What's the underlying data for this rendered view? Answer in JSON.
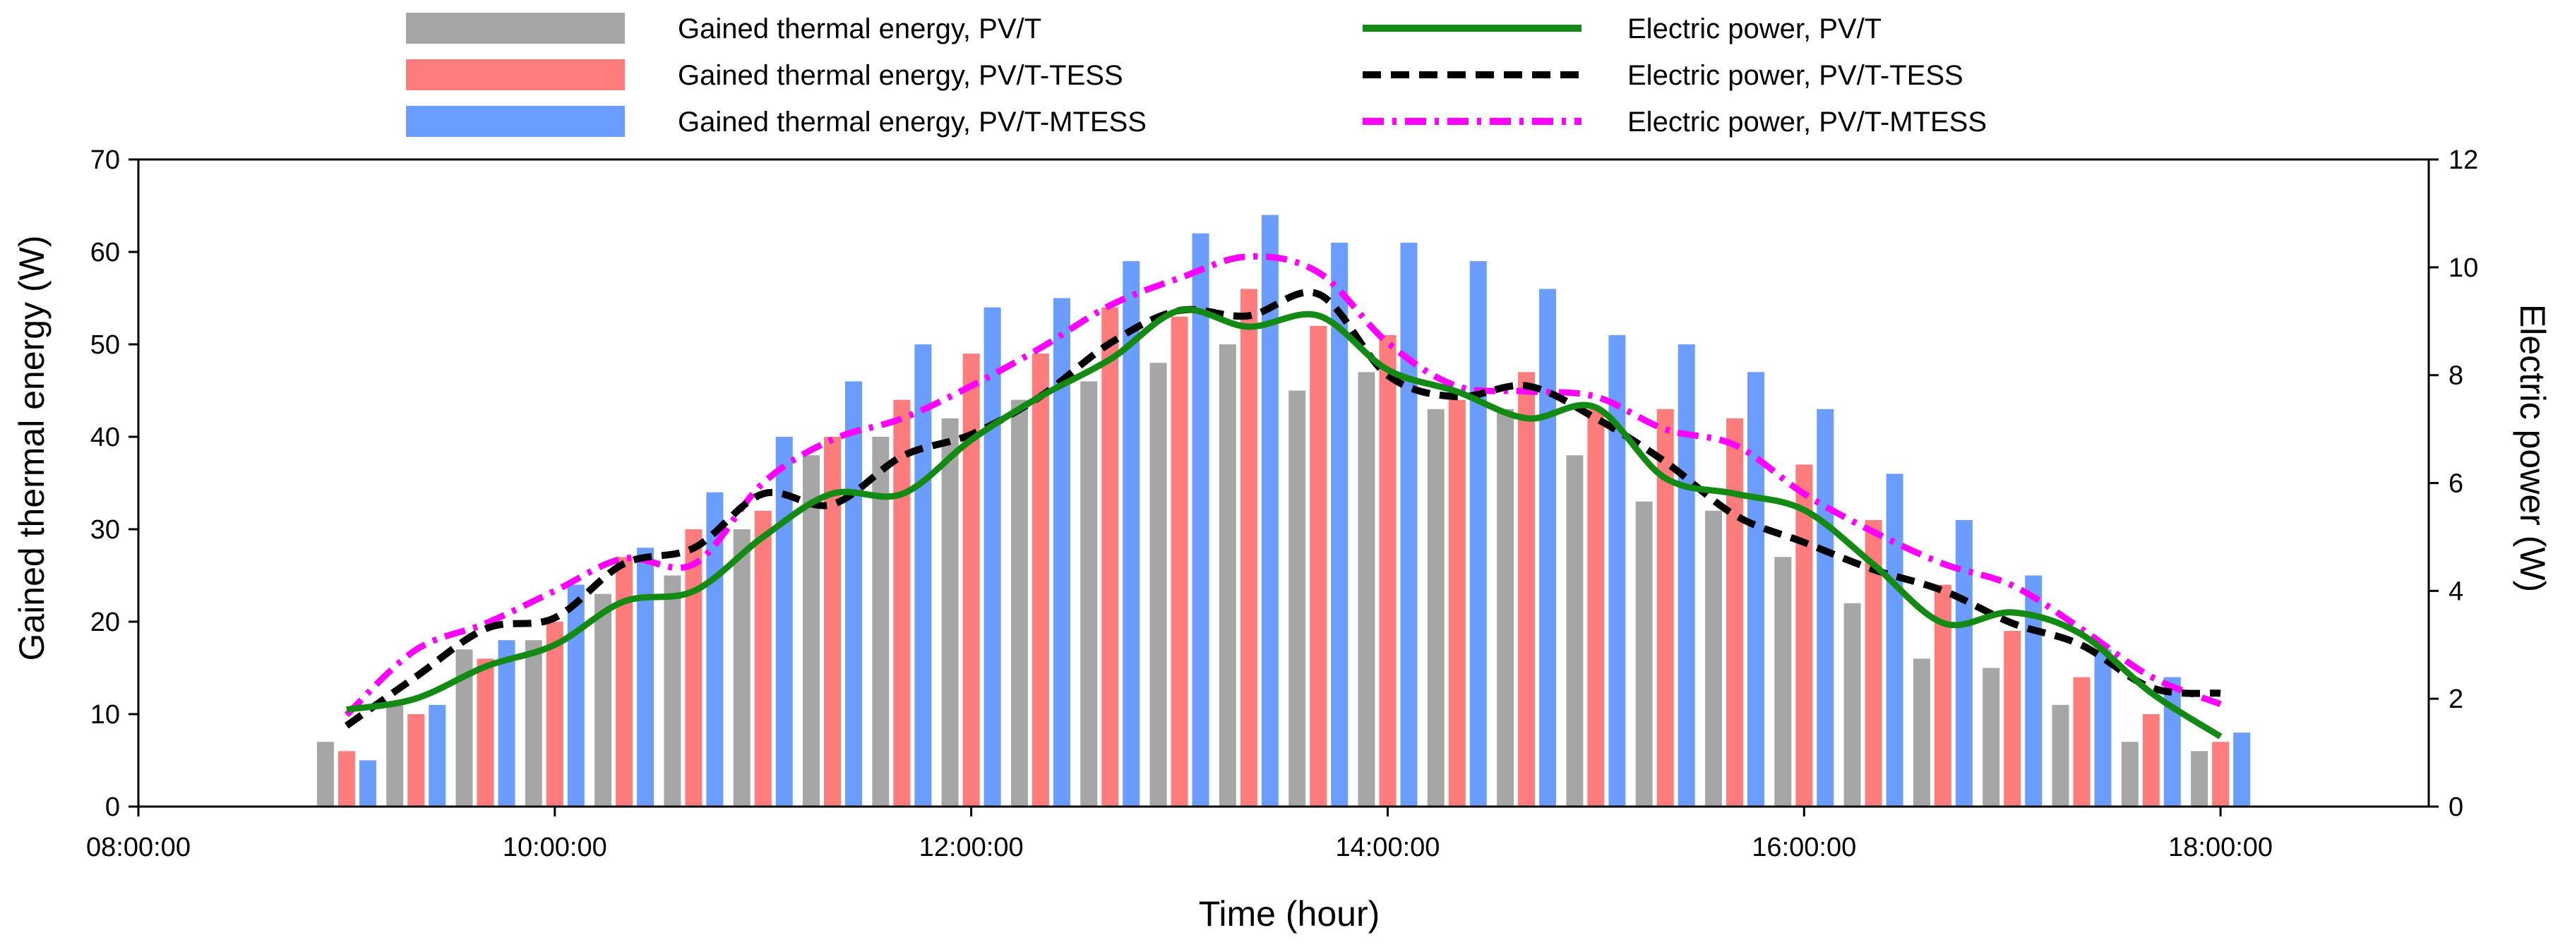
{
  "chart_data": {
    "type": "bar",
    "title": "",
    "xlabel": "Time (hour)",
    "ylabel": "Gained thermal energy (W)",
    "y2label": "Electric power (W)",
    "xlim_hours": [
      8,
      19
    ],
    "ylim": [
      0,
      70
    ],
    "y2lim": [
      0,
      12
    ],
    "x_ticks": [
      "08:00:00",
      "10:00:00",
      "12:00:00",
      "14:00:00",
      "16:00:00",
      "18:00:00"
    ],
    "y_ticks": [
      0,
      10,
      20,
      30,
      40,
      50,
      60,
      70
    ],
    "y2_ticks": [
      0,
      2,
      4,
      6,
      8,
      10,
      12
    ],
    "categories": [
      "09:00",
      "09:20",
      "09:40",
      "10:00",
      "10:20",
      "10:40",
      "11:00",
      "11:20",
      "11:40",
      "12:00",
      "12:20",
      "12:40",
      "13:00",
      "13:20",
      "13:40",
      "14:00",
      "14:20",
      "14:40",
      "15:00",
      "15:20",
      "15:40",
      "16:00",
      "16:20",
      "16:40",
      "17:00",
      "17:20",
      "17:40",
      "18:00"
    ],
    "bar_series": [
      {
        "name": "Gained thermal energy, PV/T",
        "color": "#a6a6a6",
        "values": [
          7,
          11,
          17,
          18,
          23,
          25,
          30,
          38,
          40,
          42,
          44,
          46,
          48,
          50,
          45,
          47,
          43,
          43,
          38,
          33,
          32,
          27,
          22,
          16,
          15,
          11,
          7,
          6
        ]
      },
      {
        "name": "Gained thermal energy, PV/T-TESS",
        "color": "#ff7c7c",
        "values": [
          6,
          10,
          16,
          20,
          27,
          30,
          32,
          40,
          44,
          49,
          49,
          54,
          53,
          56,
          52,
          51,
          44,
          47,
          43,
          43,
          42,
          37,
          31,
          24,
          19,
          14,
          10,
          7
        ]
      },
      {
        "name": "Gained thermal energy, PV/T-MTESS",
        "color": "#6b9cff",
        "values": [
          5,
          11,
          18,
          24,
          28,
          34,
          40,
          46,
          50,
          54,
          55,
          59,
          62,
          64,
          61,
          61,
          59,
          56,
          51,
          50,
          47,
          43,
          36,
          31,
          25,
          17,
          14,
          8
        ]
      }
    ],
    "line_series": [
      {
        "name": "Electric power, PV/T",
        "color": "#138a13",
        "dash": "solid",
        "x": [
          9.0,
          9.33,
          9.67,
          10.0,
          10.33,
          10.67,
          11.0,
          11.33,
          11.67,
          12.0,
          12.33,
          12.67,
          13.0,
          13.33,
          13.67,
          14.0,
          14.33,
          14.67,
          15.0,
          15.33,
          15.67,
          16.0,
          16.33,
          16.67,
          17.0,
          17.33,
          17.67,
          18.0
        ],
        "values": [
          1.8,
          2.0,
          2.6,
          3.0,
          3.8,
          4.0,
          5.0,
          5.8,
          5.8,
          6.8,
          7.6,
          8.3,
          9.2,
          8.9,
          9.1,
          8.1,
          7.7,
          7.2,
          7.4,
          6.1,
          5.8,
          5.5,
          4.5,
          3.4,
          3.6,
          3.2,
          2.1,
          1.3
        ]
      },
      {
        "name": "Electric power, PV/T-TESS",
        "color": "#000000",
        "dash": "dash",
        "x": [
          9.0,
          9.33,
          9.67,
          10.0,
          10.33,
          10.67,
          11.0,
          11.33,
          11.67,
          12.0,
          12.33,
          12.67,
          13.0,
          13.33,
          13.67,
          14.0,
          14.33,
          14.67,
          15.0,
          15.33,
          15.67,
          16.0,
          16.33,
          16.67,
          17.0,
          17.33,
          17.67,
          18.0
        ],
        "values": [
          1.5,
          2.4,
          3.3,
          3.5,
          4.5,
          4.8,
          5.8,
          5.6,
          6.5,
          6.9,
          7.6,
          8.6,
          9.2,
          9.1,
          9.5,
          8.0,
          7.6,
          7.8,
          7.2,
          6.4,
          5.4,
          4.9,
          4.4,
          4.0,
          3.4,
          3.0,
          2.2,
          2.1
        ]
      },
      {
        "name": "Electric power, PV/T-MTESS",
        "color": "#ff00ff",
        "dash": "dashdot",
        "x": [
          9.0,
          9.33,
          9.67,
          10.0,
          10.33,
          10.67,
          11.0,
          11.33,
          11.67,
          12.0,
          12.33,
          12.67,
          13.0,
          13.33,
          13.67,
          14.0,
          14.33,
          14.67,
          15.0,
          15.33,
          15.67,
          16.0,
          16.33,
          16.67,
          17.0,
          17.33,
          17.67,
          18.0
        ],
        "values": [
          1.7,
          2.9,
          3.4,
          4.0,
          4.6,
          4.5,
          6.0,
          6.8,
          7.2,
          7.8,
          8.5,
          9.3,
          9.8,
          10.2,
          9.9,
          8.6,
          7.8,
          7.7,
          7.6,
          7.0,
          6.7,
          5.8,
          5.1,
          4.5,
          4.1,
          3.3,
          2.4,
          1.9
        ]
      }
    ],
    "legend": [
      {
        "label": "Gained thermal energy, PV/T",
        "kind": "bar",
        "color": "#a6a6a6"
      },
      {
        "label": "Gained thermal energy, PV/T-TESS",
        "kind": "bar",
        "color": "#ff7c7c"
      },
      {
        "label": "Gained thermal energy, PV/T-MTESS",
        "kind": "bar",
        "color": "#6b9cff"
      },
      {
        "label": "Electric power, PV/T",
        "kind": "line",
        "color": "#138a13",
        "dash": "solid"
      },
      {
        "label": "Electric power, PV/T-TESS",
        "kind": "line",
        "color": "#000000",
        "dash": "dash"
      },
      {
        "label": "Electric power, PV/T-MTESS",
        "kind": "line",
        "color": "#ff00ff",
        "dash": "dashdot"
      }
    ],
    "legend_placement": "top"
  }
}
